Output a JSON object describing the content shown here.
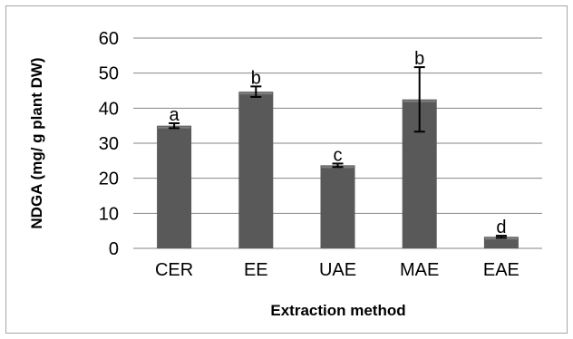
{
  "chart_data": {
    "type": "bar",
    "title": "",
    "xlabel": "Extraction method",
    "ylabel": "NDGA (mg/ g plant DW)",
    "ylim": [
      0,
      60
    ],
    "yticks": [
      0,
      10,
      20,
      30,
      40,
      50,
      60
    ],
    "grid": true,
    "categories": [
      "CER",
      "EE",
      "UAE",
      "MAE",
      "EAE"
    ],
    "values": [
      35,
      44.7,
      23.7,
      42.5,
      3.3
    ],
    "error": [
      0.7,
      1.5,
      0.5,
      9.2,
      0.3
    ],
    "labels": [
      "a",
      "b",
      "c",
      "b",
      "d"
    ],
    "bar_color": "#595959",
    "bar_highlight": "#7f7f7f",
    "grid_color": "#868686"
  }
}
